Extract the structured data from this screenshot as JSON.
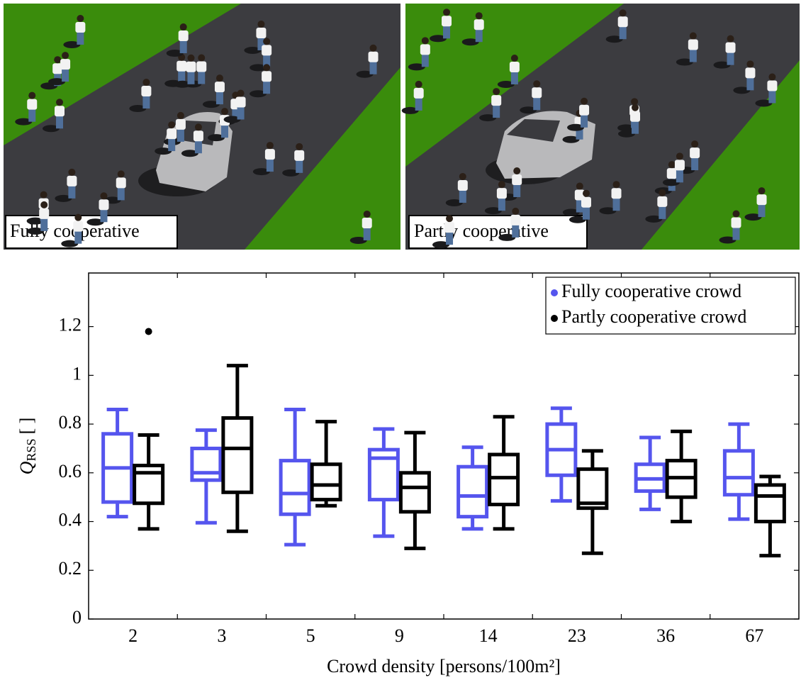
{
  "panels": [
    {
      "label": "Fully cooperative"
    },
    {
      "label": "Partly cooperative"
    }
  ],
  "chart_data": {
    "type": "box",
    "x_label": "Crowd density [persons/100m²]",
    "y_label": {
      "symbol": "Q",
      "subscript": "RSS",
      "unit": "[ ]"
    },
    "categories": [
      "2",
      "3",
      "5",
      "9",
      "14",
      "23",
      "36",
      "67"
    ],
    "ylim": [
      0,
      1.42
    ],
    "yticks": [
      0,
      0.2,
      0.4,
      0.6,
      0.8,
      1,
      1.2
    ],
    "legend": "top-right",
    "series": [
      {
        "name": "Fully cooperative crowd",
        "color": "#5555ee",
        "min": [
          0.42,
          0.395,
          0.305,
          0.34,
          0.37,
          0.485,
          0.45,
          0.41
        ],
        "q1": [
          0.48,
          0.57,
          0.43,
          0.49,
          0.42,
          0.59,
          0.525,
          0.51
        ],
        "median": [
          0.62,
          0.6,
          0.515,
          0.66,
          0.505,
          0.695,
          0.575,
          0.58
        ],
        "q3": [
          0.76,
          0.7,
          0.65,
          0.695,
          0.625,
          0.8,
          0.635,
          0.69
        ],
        "max": [
          0.86,
          0.775,
          0.86,
          0.78,
          0.705,
          0.865,
          0.745,
          0.8
        ],
        "outliers": [
          null,
          null,
          null,
          null,
          null,
          null,
          null,
          null
        ]
      },
      {
        "name": "Partly cooperative crowd",
        "color": "#000000",
        "min": [
          0.37,
          0.36,
          0.465,
          0.29,
          0.37,
          0.27,
          0.4,
          0.26
        ],
        "q1": [
          0.475,
          0.52,
          0.49,
          0.44,
          0.47,
          0.455,
          0.5,
          0.4
        ],
        "median": [
          0.6,
          0.7,
          0.55,
          0.54,
          0.58,
          0.475,
          0.58,
          0.505
        ],
        "q3": [
          0.63,
          0.825,
          0.635,
          0.6,
          0.675,
          0.615,
          0.65,
          0.55
        ],
        "max": [
          0.755,
          1.04,
          0.81,
          0.765,
          0.83,
          0.69,
          0.77,
          0.585
        ],
        "outliers": [
          1.18,
          null,
          null,
          null,
          null,
          null,
          null,
          null
        ]
      }
    ]
  }
}
